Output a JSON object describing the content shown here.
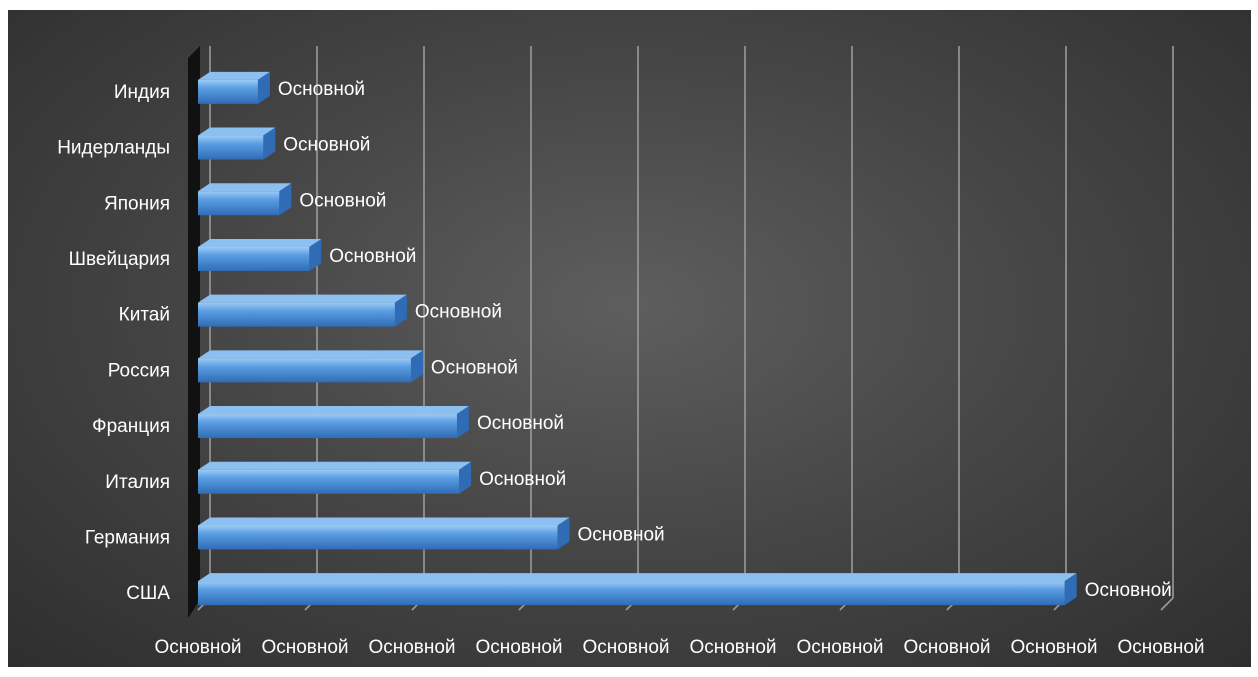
{
  "chart_data": {
    "type": "bar",
    "orientation": "horizontal",
    "categories": [
      "США",
      "Германия",
      "Италия",
      "Франция",
      "Россия",
      "Китай",
      "Швейцария",
      "Япония",
      "Нидерланды",
      "Индия"
    ],
    "series": [
      {
        "values": [
          8.1,
          3.36,
          2.44,
          2.42,
          1.99,
          1.84,
          1.04,
          0.76,
          0.61,
          0.56
        ],
        "data_labels": [
          "Основной",
          "Основной",
          "Основной",
          "Основной",
          "Основной",
          "Основной",
          "Основной",
          "Основной",
          "Основной",
          "Основной"
        ]
      }
    ],
    "x_tick_labels": [
      "Основной",
      "Основной",
      "Основной",
      "Основной",
      "Основной",
      "Основной",
      "Основной",
      "Основной",
      "Основной",
      "Основной"
    ],
    "xlim": [
      0,
      9
    ],
    "grid": true,
    "legend": "none",
    "colors": {
      "bar": "#4a8fd8",
      "bar_light": "#8cc0f0",
      "bar_dark": "#2f6cb5",
      "grid": "#9a9a9a",
      "text": "#ffffff",
      "wall": "#111111"
    }
  }
}
